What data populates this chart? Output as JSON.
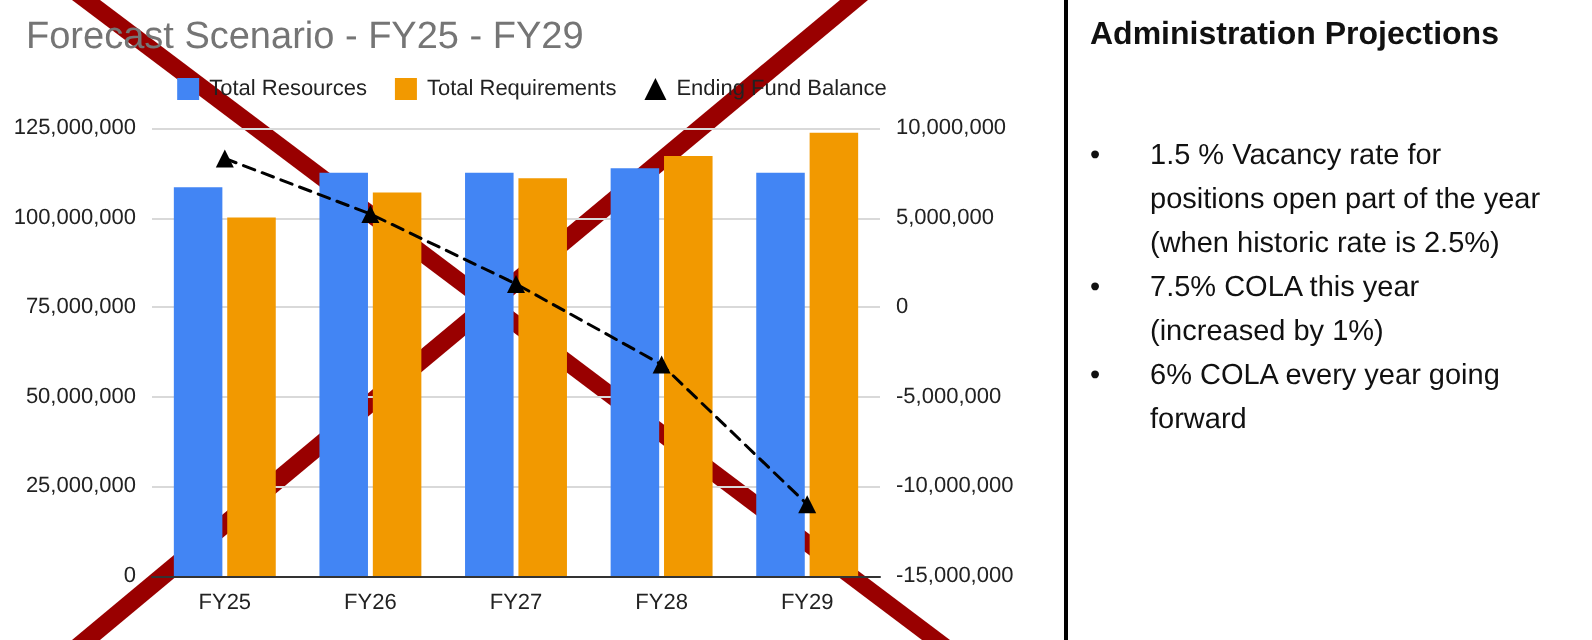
{
  "chart_data": [
    {
      "type": "bar",
      "title": "Forecast Scenario - FY25 - FY29",
      "categories": [
        "FY25",
        "FY26",
        "FY27",
        "FY28",
        "FY29"
      ],
      "series": [
        {
          "name": "Total Resources",
          "color": "#4285f4",
          "values": [
            108500000,
            112500000,
            112500000,
            113800000,
            112500000
          ]
        },
        {
          "name": "Total Requirements",
          "color": "#f29900",
          "values": [
            100000000,
            107000000,
            111000000,
            117200000,
            123700000
          ]
        },
        {
          "name": "Ending Fund Balance",
          "type": "line",
          "axis": "y2",
          "color": "#000000",
          "marker": "triangle",
          "line_style": "dashed",
          "values": [
            8300000,
            5200000,
            1300000,
            -3200000,
            -11000000
          ]
        }
      ],
      "ylim": [
        0,
        125000000
      ],
      "yticks": [
        {
          "value": 0,
          "label": "0"
        },
        {
          "value": 25000000,
          "label": "25,000,000"
        },
        {
          "value": 50000000,
          "label": "50,000,000"
        },
        {
          "value": 75000000,
          "label": "75,000,000"
        },
        {
          "value": 100000000,
          "label": "100,000,000"
        },
        {
          "value": 125000000,
          "label": "125,000,000"
        }
      ],
      "y2lim": [
        -15000000,
        10000000
      ],
      "y2ticks": [
        {
          "value": -15000000,
          "label": "-15,000,000"
        },
        {
          "value": -10000000,
          "label": "-10,000,000"
        },
        {
          "value": -5000000,
          "label": "-5,000,000"
        },
        {
          "value": 0,
          "label": "0"
        },
        {
          "value": 5000000,
          "label": "5,000,000"
        },
        {
          "value": 10000000,
          "label": "10,000,000"
        }
      ],
      "grid": "y",
      "legend": "top"
    },
    {
      "type": "other",
      "title": "Administration Projections",
      "annotations": [
        "• 1.5 % Vacancy rate for positions open part of the year (when historic rate is 2.5%)",
        "• 7.5% COLA this year (increased by 1%)",
        "• 6% COLA every year going forward"
      ]
    }
  ]
}
